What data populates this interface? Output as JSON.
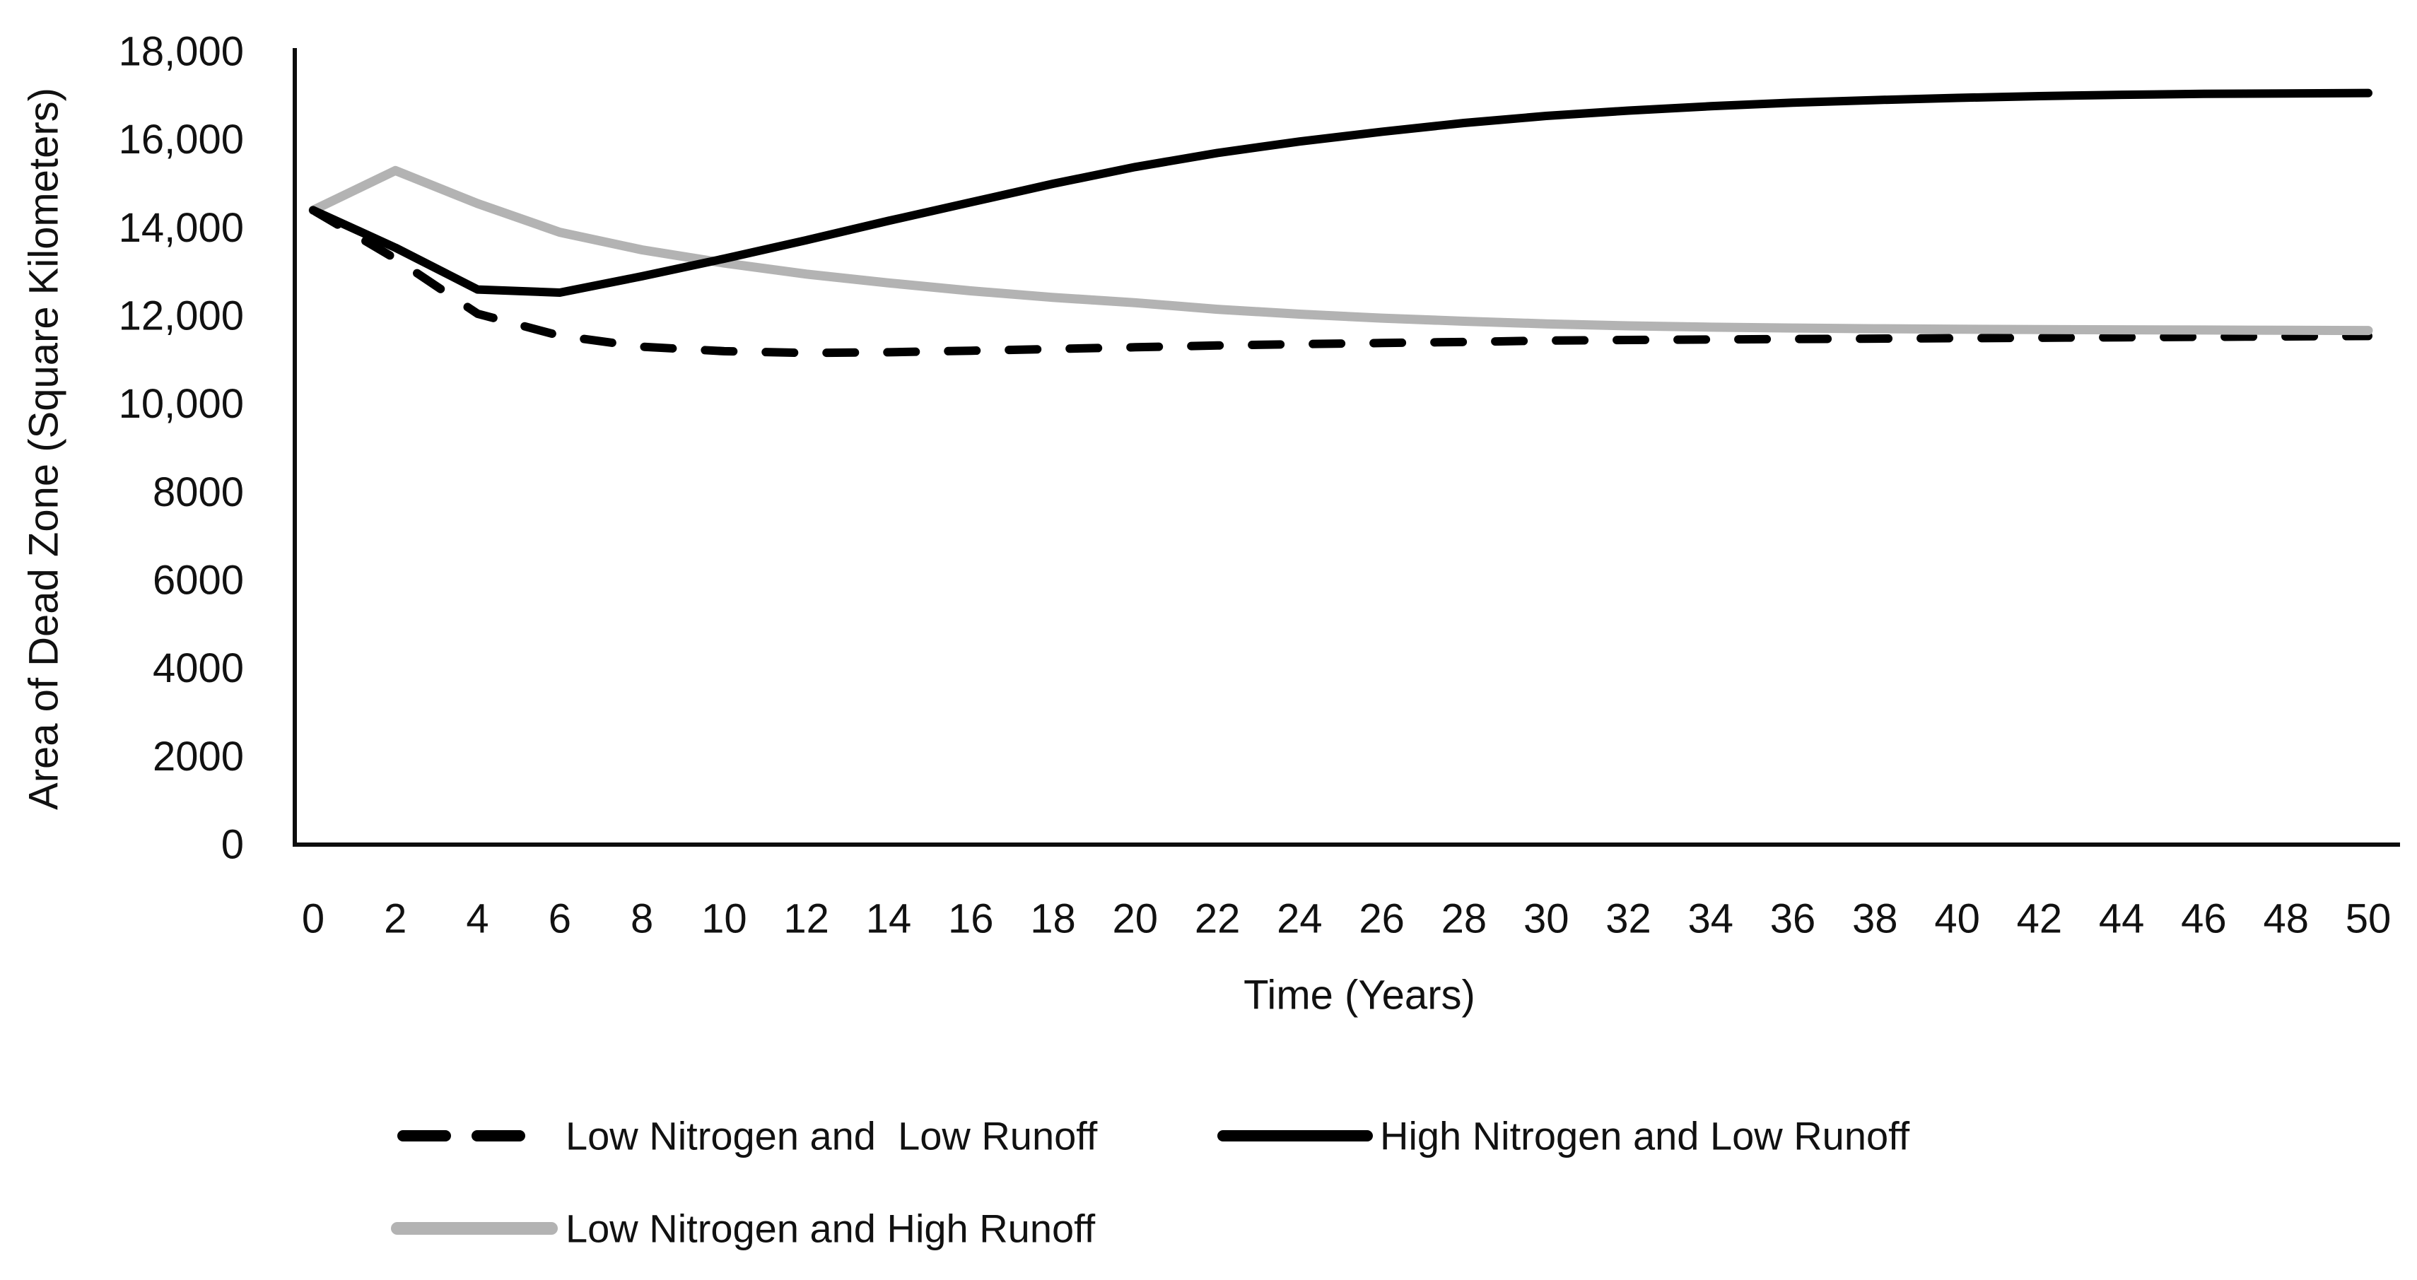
{
  "figure": {
    "background": "#ffffff",
    "axis_color": "#0d0d0d",
    "text_color": "#111111",
    "y_axis_title": "Area of Dead Zone (Square Kilometers)",
    "x_axis_title": "Time (Years)",
    "legend": [
      {
        "label": "Low Nitrogen and  Low Runoff",
        "style": "dashed",
        "color": "#000000"
      },
      {
        "label": "High Nitrogen and Low Runoff",
        "style": "solid",
        "color": "#000000"
      },
      {
        "label": "Low Nitrogen and High Runoff",
        "style": "solid",
        "color": "#b3b3b3"
      }
    ]
  },
  "chart_data": {
    "type": "line",
    "title": "",
    "xlabel": "Time (Years)",
    "ylabel": "Area of Dead Zone (Square Kilometers)",
    "xlim": [
      0,
      50
    ],
    "ylim": [
      0,
      18000
    ],
    "grid": false,
    "legend_position": "bottom",
    "x": [
      0,
      2,
      4,
      6,
      8,
      10,
      12,
      14,
      16,
      18,
      20,
      22,
      24,
      26,
      28,
      30,
      32,
      34,
      36,
      38,
      40,
      42,
      44,
      46,
      48,
      50
    ],
    "xtick_labels": [
      "0",
      "2",
      "4",
      "6",
      "8",
      "10",
      "12",
      "14",
      "16",
      "18",
      "20",
      "22",
      "24",
      "26",
      "28",
      "30",
      "32",
      "34",
      "36",
      "38",
      "40",
      "42",
      "44",
      "46",
      "48",
      "50"
    ],
    "ytick_step": 2000,
    "ytick_labels": [
      "0",
      "2000",
      "4000",
      "6000",
      "8000",
      "10,000",
      "12,000",
      "14,000",
      "16,000",
      "18,000"
    ],
    "series": [
      {
        "name": "Low Nitrogen and  Low Runoff",
        "color": "#000000",
        "line_style": "dashed",
        "values": [
          14400,
          13300,
          12050,
          11550,
          11300,
          11200,
          11160,
          11175,
          11210,
          11250,
          11290,
          11330,
          11360,
          11385,
          11410,
          11440,
          11455,
          11465,
          11475,
          11485,
          11495,
          11505,
          11515,
          11525,
          11535,
          11545
        ]
      },
      {
        "name": "High Nitrogen and Low Runoff",
        "color": "#000000",
        "line_style": "solid",
        "values": [
          14400,
          13550,
          12600,
          12530,
          12900,
          13300,
          13720,
          14160,
          14580,
          15000,
          15380,
          15700,
          15960,
          16180,
          16380,
          16540,
          16660,
          16760,
          16840,
          16900,
          16950,
          16990,
          17020,
          17040,
          17050,
          17060
        ]
      },
      {
        "name": "Low Nitrogen and High Runoff",
        "color": "#b3b3b3",
        "line_style": "solid",
        "values": [
          14400,
          15300,
          14550,
          13900,
          13500,
          13200,
          12950,
          12750,
          12570,
          12420,
          12300,
          12150,
          12040,
          11950,
          11880,
          11820,
          11775,
          11745,
          11725,
          11710,
          11700,
          11690,
          11685,
          11680,
          11675,
          11670
        ]
      }
    ]
  }
}
